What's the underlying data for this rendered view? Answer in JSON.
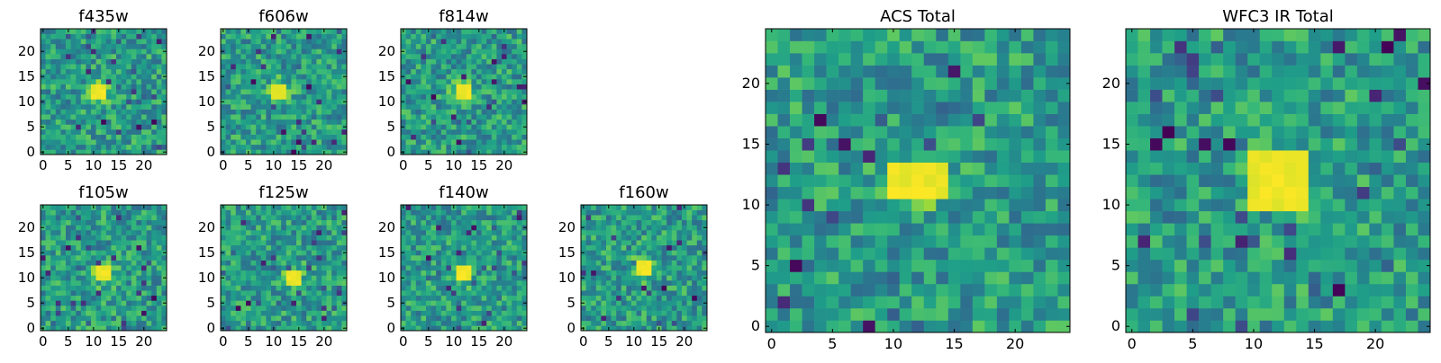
{
  "chart_data": [
    {
      "type": "heatmap",
      "title": "f435w",
      "xticks": [
        "0",
        "5",
        "10",
        "15",
        "20"
      ],
      "yticks": [
        "0",
        "5",
        "10",
        "15",
        "20"
      ],
      "xlim": [
        0,
        24
      ],
      "ylim": [
        0,
        24
      ],
      "grid": false,
      "colormap": "viridis",
      "source_peak": [
        11,
        12
      ],
      "source_size": [
        3,
        2
      ]
    },
    {
      "type": "heatmap",
      "title": "f606w",
      "xticks": [
        "0",
        "5",
        "10",
        "15",
        "20"
      ],
      "yticks": [
        "0",
        "5",
        "10",
        "15",
        "20"
      ],
      "xlim": [
        0,
        24
      ],
      "ylim": [
        0,
        24
      ],
      "grid": false,
      "colormap": "viridis",
      "source_peak": [
        11,
        12
      ],
      "source_size": [
        3,
        2
      ]
    },
    {
      "type": "heatmap",
      "title": "f814w",
      "xticks": [
        "0",
        "5",
        "10",
        "15",
        "20"
      ],
      "yticks": [
        "0",
        "5",
        "10",
        "15",
        "20"
      ],
      "xlim": [
        0,
        24
      ],
      "ylim": [
        0,
        24
      ],
      "grid": false,
      "colormap": "viridis",
      "source_peak": [
        12,
        12
      ],
      "source_size": [
        2,
        2
      ]
    },
    {
      "type": "heatmap",
      "title": "f105w",
      "xticks": [
        "0",
        "5",
        "10",
        "15",
        "20"
      ],
      "yticks": [
        "0",
        "5",
        "10",
        "15",
        "20"
      ],
      "xlim": [
        0,
        24
      ],
      "ylim": [
        0,
        24
      ],
      "grid": false,
      "colormap": "viridis",
      "source_peak": [
        12,
        11
      ],
      "source_size": [
        3,
        3
      ]
    },
    {
      "type": "heatmap",
      "title": "f125w",
      "xticks": [
        "0",
        "5",
        "10",
        "15",
        "20"
      ],
      "yticks": [
        "0",
        "5",
        "10",
        "15",
        "20"
      ],
      "xlim": [
        0,
        24
      ],
      "ylim": [
        0,
        24
      ],
      "grid": false,
      "colormap": "viridis",
      "source_peak": [
        14,
        10
      ],
      "source_size": [
        3,
        3
      ]
    },
    {
      "type": "heatmap",
      "title": "f140w",
      "xticks": [
        "0",
        "5",
        "10",
        "15",
        "20"
      ],
      "yticks": [
        "0",
        "5",
        "10",
        "15",
        "20"
      ],
      "xlim": [
        0,
        24
      ],
      "ylim": [
        0,
        24
      ],
      "grid": false,
      "colormap": "viridis",
      "source_peak": [
        12,
        11
      ],
      "source_size": [
        3,
        3
      ]
    },
    {
      "type": "heatmap",
      "title": "f160w",
      "xticks": [
        "0",
        "5",
        "10",
        "15",
        "20"
      ],
      "yticks": [
        "0",
        "5",
        "10",
        "15",
        "20"
      ],
      "xlim": [
        0,
        24
      ],
      "ylim": [
        0,
        24
      ],
      "grid": false,
      "colormap": "viridis",
      "source_peak": [
        12,
        12
      ],
      "source_size": [
        3,
        3
      ]
    },
    {
      "type": "heatmap",
      "title": "ACS Total",
      "xticks": [
        "0",
        "5",
        "10",
        "15",
        "20"
      ],
      "yticks": [
        "0",
        "5",
        "10",
        "15",
        "20"
      ],
      "xlim": [
        0,
        24
      ],
      "ylim": [
        0,
        24
      ],
      "grid": false,
      "colormap": "viridis",
      "source_peak": [
        12,
        12
      ],
      "source_size": [
        4,
        3
      ]
    },
    {
      "type": "heatmap",
      "title": "WFC3 IR Total",
      "xticks": [
        "0",
        "5",
        "10",
        "15",
        "20"
      ],
      "yticks": [
        "0",
        "5",
        "10",
        "15",
        "20"
      ],
      "xlim": [
        0,
        24
      ],
      "ylim": [
        0,
        24
      ],
      "grid": false,
      "colormap": "viridis",
      "source_peak": [
        12,
        12
      ],
      "source_size": [
        4,
        4
      ]
    }
  ]
}
